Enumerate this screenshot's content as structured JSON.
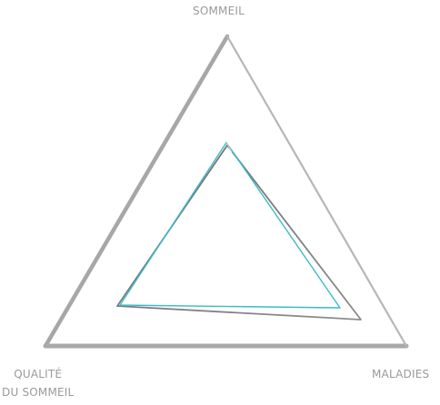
{
  "labels": {
    "top": "SOMMEIL",
    "right": "MALADIES",
    "left_line1": "QUALITÉ",
    "left_line2": "DU SOMMEIL"
  },
  "colors": {
    "outer": "#a8a8a8",
    "middle": "#7a7a7a",
    "inner": "#3bbcc8",
    "label": "#9a9a9a"
  }
}
